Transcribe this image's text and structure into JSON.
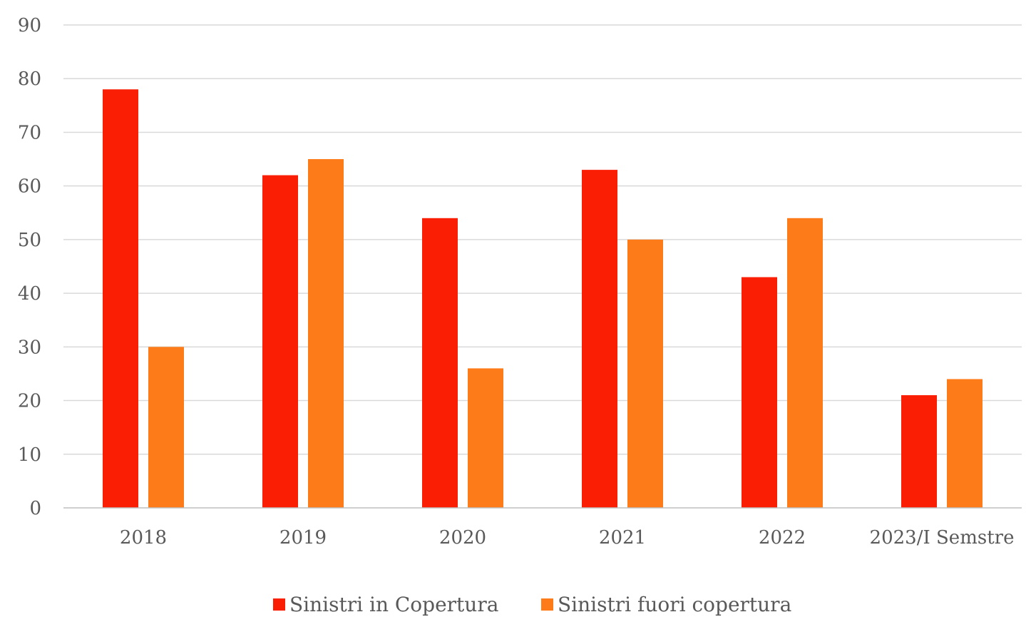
{
  "chart_data": {
    "type": "bar",
    "title": "",
    "xlabel": "",
    "ylabel": "",
    "categories": [
      "2018",
      "2019",
      "2020",
      "2021",
      "2022",
      "2023/I Semstre"
    ],
    "series": [
      {
        "name": "Sinistri in Copertura",
        "color": "#fa1e05",
        "values": [
          78,
          62,
          54,
          63,
          43,
          21
        ]
      },
      {
        "name": "Sinistri fuori copertura",
        "color": "#fd7b18",
        "values": [
          30,
          65,
          26,
          50,
          54,
          24
        ]
      }
    ],
    "ylim": [
      0,
      90
    ],
    "yticks": [
      0,
      10,
      20,
      30,
      40,
      50,
      60,
      70,
      80,
      90
    ],
    "grid": true,
    "legend_position": "bottom"
  }
}
